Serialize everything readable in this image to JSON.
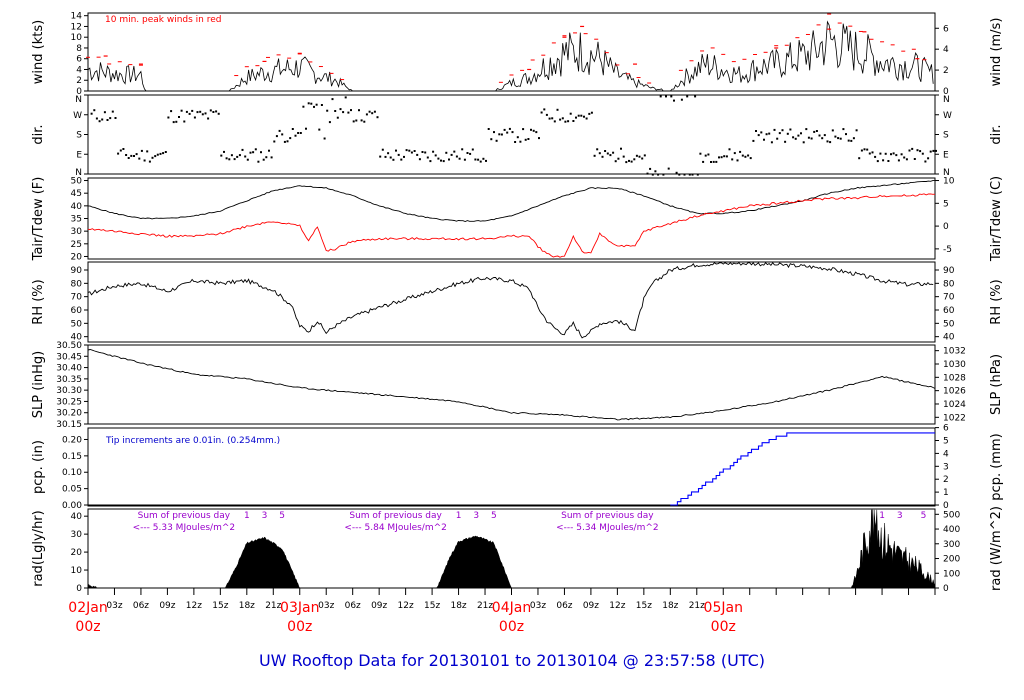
{
  "footer_title": "UW Rooftop Data for 20130101  to  20130104 @ 23:57:58  (UTC)",
  "colors": {
    "frame": "#000000",
    "peak": "#ff0000",
    "dew": "#ff0000",
    "rain": "#0000ff",
    "note": "#0000cc",
    "sum": "#9900cc",
    "day": "#ff0000"
  },
  "time_axis": {
    "hour_labels": [
      "03z",
      "06z",
      "09z",
      "12z",
      "15z",
      "18z",
      "21z",
      "03z",
      "06z",
      "09z",
      "12z",
      "15z",
      "18z",
      "21z",
      "03z",
      "06z",
      "09z",
      "12z",
      "15z",
      "18z",
      "21z"
    ],
    "day_labels": [
      {
        "date": "02Jan",
        "hour": "00z"
      },
      {
        "date": "03Jan",
        "hour": "00z"
      },
      {
        "date": "04Jan",
        "hour": "00z"
      },
      {
        "date": "05Jan",
        "hour": "00z"
      }
    ]
  },
  "panels": {
    "wind": {
      "label_left": "wind (kts)",
      "label_right": "wind (m/s)",
      "note": "10 min. peak winds in red",
      "left_ticks": [
        "0",
        "2",
        "4",
        "6",
        "8",
        "10",
        "12",
        "14"
      ],
      "right_ticks": [
        "0",
        "2",
        "4",
        "6"
      ]
    },
    "dir": {
      "label_left": "dir.",
      "label_right": "dir.",
      "left_ticks": [
        "N",
        "E",
        "S",
        "W",
        "N"
      ],
      "right_ticks": [
        "N",
        "E",
        "S",
        "W",
        "N"
      ]
    },
    "temp": {
      "label_left": "Tair/Tdew (F)",
      "label_right": "Tair/Tdew (C)",
      "left_ticks": [
        "20",
        "25",
        "30",
        "35",
        "40",
        "45",
        "50"
      ],
      "right_ticks": [
        "-5",
        "0",
        "5",
        "10"
      ]
    },
    "rh": {
      "label_left": "RH (%)",
      "label_right": "RH (%)",
      "left_ticks": [
        "40",
        "50",
        "60",
        "70",
        "80",
        "90"
      ],
      "right_ticks": [
        "40",
        "50",
        "60",
        "70",
        "80",
        "90"
      ]
    },
    "slp": {
      "label_left": "SLP (inHg)",
      "label_right": "SLP (hPa)",
      "left_ticks": [
        "30.15",
        "30.20",
        "30.25",
        "30.30",
        "30.35",
        "30.40",
        "30.45",
        "30.50"
      ],
      "right_ticks": [
        "1022",
        "1024",
        "1026",
        "1028",
        "1030",
        "1032"
      ]
    },
    "pcp": {
      "label_left": "pcp. (in)",
      "label_right": "pcp. (mm)",
      "note": "Tip increments are 0.01in. (0.254mm.)",
      "left_ticks": [
        "0.00",
        "0.05",
        "0.10",
        "0.15",
        "0.20"
      ],
      "right_ticks": [
        "0",
        "1",
        "2",
        "3",
        "4",
        "5",
        "6"
      ]
    },
    "rad": {
      "label_left": "rad(Lgly/hr)",
      "label_right": "rad (W/m^2)",
      "left_ticks": [
        "0",
        "10",
        "20",
        "30",
        "40"
      ],
      "right_ticks": [
        "0",
        "100",
        "200",
        "300",
        "400",
        "500"
      ],
      "sums": [
        {
          "title": "Sum of previous day",
          "value": "<--- 5.33 MJoules/m^2"
        },
        {
          "title": "Sum of previous day",
          "value": "<--- 5.84 MJoules/m^2"
        },
        {
          "title": "Sum of previous day",
          "value": "<--- 5.34 MJoules/m^2"
        }
      ],
      "marks": [
        "1",
        "3",
        "5"
      ]
    }
  },
  "chart_data": [
    {
      "type": "line",
      "panel": "wind",
      "ylabel": "wind (kts)",
      "ylim": [
        0,
        14.5
      ],
      "x_unit": "hours since 02Jan 00z",
      "x_range": [
        0,
        96
      ],
      "series": [
        {
          "name": "",
          "x": [
            0,
            2,
            4,
            6,
            6.5,
            8,
            10,
            12,
            14,
            16,
            18,
            20,
            22,
            24,
            26,
            28,
            30,
            32,
            34,
            36,
            38,
            40,
            42,
            44,
            46,
            48,
            50,
            52,
            54,
            56,
            58,
            60,
            62,
            64,
            66,
            68,
            70,
            72,
            74,
            76,
            78,
            80,
            82,
            84,
            86,
            88,
            90,
            92,
            94,
            96
          ],
          "y": [
            4,
            3.5,
            3,
            3,
            0,
            0,
            0,
            0,
            0,
            0,
            2.5,
            3.5,
            4,
            4.5,
            3,
            2,
            0,
            0,
            0,
            0,
            0,
            0,
            0,
            0,
            0,
            1.5,
            2.5,
            5,
            7,
            7.5,
            6,
            3,
            1.5,
            0.5,
            0,
            3,
            5,
            4,
            3,
            4.5,
            5,
            6,
            7,
            9.5,
            8,
            7,
            5.5,
            5,
            4.5,
            3
          ]
        },
        {
          "name": "10 min. peak winds",
          "x": [
            2,
            6,
            20,
            24,
            50,
            54,
            56,
            62,
            78,
            84,
            88,
            94
          ],
          "y": [
            6.5,
            5,
            5.5,
            7,
            4,
            10,
            12,
            5,
            8,
            11.5,
            11,
            6
          ]
        }
      ]
    },
    {
      "type": "scatter",
      "panel": "dir",
      "ylabel": "dir.",
      "ylim": [
        "N",
        "N"
      ],
      "series": [
        {
          "name": "",
          "x": [
            0,
            6,
            12,
            18,
            24,
            30,
            36,
            42,
            48,
            54,
            60,
            66,
            72,
            78,
            84,
            90,
            96
          ],
          "y": [
            "W",
            "E",
            "W",
            "E",
            "S",
            "W",
            "E",
            "E",
            "S",
            "W",
            "E",
            "N",
            "E",
            "S",
            "S",
            "E",
            "E"
          ]
        }
      ]
    },
    {
      "type": "line",
      "panel": "temp",
      "ylabel": "Tair/Tdew (F)",
      "ylim": [
        20,
        50
      ],
      "series": [
        {
          "name": "Tair",
          "x": [
            0,
            3,
            6,
            9,
            12,
            15,
            18,
            21,
            24,
            27,
            30,
            33,
            36,
            39,
            42,
            45,
            48,
            51,
            54,
            57,
            60,
            63,
            66,
            69,
            72,
            75,
            78,
            81,
            84,
            87,
            90,
            93,
            96
          ],
          "y": [
            40,
            37,
            35,
            35,
            36,
            38,
            42,
            46,
            48,
            47,
            44,
            40,
            37,
            35,
            34,
            34,
            36,
            40,
            44,
            47,
            47,
            44,
            40,
            37,
            37,
            38,
            40,
            42,
            45,
            47,
            48,
            49,
            50
          ]
        },
        {
          "name": "Tdew",
          "x": [
            0,
            3,
            6,
            9,
            12,
            15,
            18,
            21,
            24,
            25,
            26,
            27,
            28,
            30,
            33,
            36,
            39,
            42,
            45,
            48,
            50,
            51,
            52,
            53,
            54,
            55,
            56,
            57,
            58,
            60,
            62,
            63,
            66,
            69,
            72,
            75,
            78,
            81,
            84,
            87,
            90,
            93,
            96
          ],
          "y": [
            31,
            30,
            29,
            28,
            28,
            29,
            32,
            34,
            32,
            26,
            32,
            22,
            23,
            26,
            27,
            27,
            27,
            27,
            27,
            28,
            28,
            24,
            21,
            20,
            20,
            28,
            22,
            21,
            29,
            24,
            24,
            30,
            33,
            36,
            38,
            40,
            41,
            42,
            43,
            43,
            44,
            44,
            45
          ]
        }
      ]
    },
    {
      "type": "line",
      "panel": "rh",
      "ylabel": "RH (%)",
      "ylim": [
        35,
        95
      ],
      "series": [
        {
          "name": "",
          "x": [
            0,
            3,
            6,
            9,
            12,
            15,
            18,
            21,
            23,
            24,
            25,
            26,
            27,
            28,
            30,
            33,
            36,
            39,
            42,
            45,
            48,
            50,
            51,
            52,
            53,
            54,
            55,
            56,
            57,
            58,
            60,
            62,
            63,
            64,
            66,
            69,
            72,
            75,
            78,
            81,
            84,
            87,
            90,
            93,
            96
          ],
          "y": [
            72,
            78,
            80,
            74,
            82,
            80,
            82,
            75,
            64,
            48,
            44,
            52,
            43,
            48,
            55,
            62,
            68,
            74,
            80,
            84,
            82,
            76,
            62,
            52,
            46,
            42,
            50,
            40,
            44,
            50,
            52,
            45,
            68,
            80,
            90,
            94,
            95,
            95,
            94,
            93,
            91,
            87,
            82,
            79,
            80
          ]
        }
      ]
    },
    {
      "type": "line",
      "panel": "slp",
      "ylabel": "SLP (inHg)",
      "ylim": [
        30.15,
        30.5
      ],
      "series": [
        {
          "name": "",
          "x": [
            0,
            6,
            12,
            18,
            24,
            30,
            36,
            42,
            48,
            54,
            60,
            66,
            72,
            78,
            84,
            90,
            96
          ],
          "y": [
            30.48,
            30.42,
            30.37,
            30.35,
            30.31,
            30.29,
            30.27,
            30.25,
            30.2,
            30.19,
            30.17,
            30.18,
            30.21,
            30.25,
            30.3,
            30.36,
            30.31
          ]
        }
      ]
    },
    {
      "type": "line",
      "panel": "pcp",
      "ylabel": "pcp. (in)",
      "ylim": [
        0,
        0.23
      ],
      "series": [
        {
          "name": "",
          "x": [
            0,
            66,
            67,
            69,
            71,
            73,
            75,
            77,
            79,
            96
          ],
          "y": [
            0,
            0,
            0.02,
            0.05,
            0.09,
            0.13,
            0.17,
            0.2,
            0.22,
            0.22
          ]
        }
      ]
    },
    {
      "type": "area",
      "panel": "rad",
      "ylabel": "rad(Lgly/hr)",
      "ylim": [
        0,
        44
      ],
      "series": [
        {
          "name": "",
          "x": [
            0,
            1,
            15.5,
            16,
            17,
            18,
            20,
            22,
            24,
            30,
            39.5,
            40,
            41,
            42,
            44,
            46,
            48,
            64,
            86.5,
            87,
            88,
            89,
            90,
            92,
            94,
            96
          ],
          "y": [
            2,
            0,
            0,
            4,
            14,
            25,
            28,
            22,
            0,
            0,
            0,
            5,
            17,
            26,
            29,
            25,
            0,
            0,
            0,
            6,
            24,
            42,
            28,
            18,
            12,
            3
          ]
        }
      ]
    }
  ]
}
